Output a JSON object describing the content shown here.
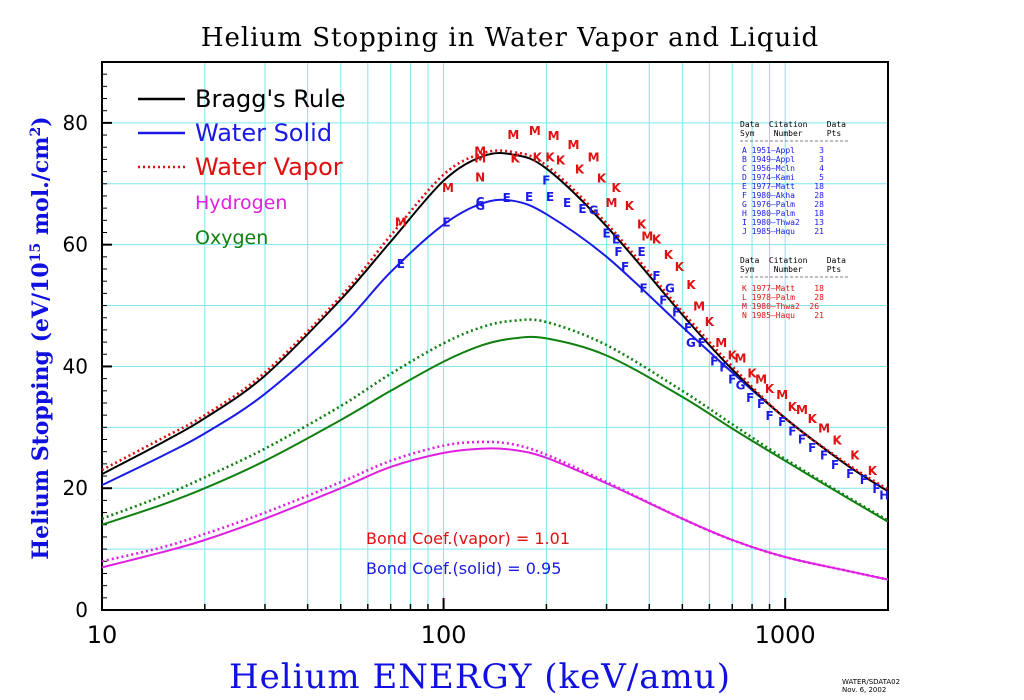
{
  "chart_data": {
    "type": "line",
    "title": "Helium Stopping in Water Vapor and Liquid",
    "xlabel": "Helium ENERGY (keV/amu)",
    "ylabel": "Helium Stopping (eV/10",
    "ylabel_sup": "15",
    "ylabel_mid": " mol./cm",
    "ylabel_sup2": "2",
    "ylabel_end": ")",
    "x_scale": "log",
    "xlim": [
      10,
      2000
    ],
    "ylim": [
      0,
      90
    ],
    "grid": true,
    "x_ticks": [
      10,
      100,
      1000
    ],
    "x_tick_labels": [
      "10",
      "100",
      "1000"
    ],
    "y_ticks": [
      0,
      20,
      40,
      60,
      80
    ],
    "y_tick_labels": [
      "0",
      "20",
      "40",
      "60",
      "80"
    ],
    "legend_position": "top-left",
    "legend": [
      {
        "label": "Bragg's Rule",
        "color": "#000000",
        "style": "solid"
      },
      {
        "label": "Water Solid",
        "color": "#1a1ae6",
        "style": "solid"
      },
      {
        "label": "Water Vapor",
        "color": "#e01010",
        "style": "dotted"
      },
      {
        "label": "Hydrogen",
        "color": "#e020e0",
        "style": "none"
      },
      {
        "label": "Oxygen",
        "color": "#108010",
        "style": "none"
      }
    ],
    "series": [
      {
        "name": "Bragg's Rule",
        "color": "#000000",
        "dash": "solid",
        "x": [
          10,
          15,
          20,
          30,
          50,
          70,
          100,
          130,
          160,
          200,
          300,
          500,
          700,
          1000,
          1500,
          2000
        ],
        "y": [
          22.3,
          27.5,
          31.5,
          38.5,
          51,
          60.5,
          70.5,
          74.5,
          74.8,
          72.5,
          63,
          48.5,
          39.5,
          31.5,
          24,
          19.5
        ]
      },
      {
        "name": "Water Solid",
        "color": "#1a1ae6",
        "dash": "solid",
        "x": [
          10,
          15,
          20,
          30,
          50,
          70,
          100,
          130,
          160,
          200,
          300,
          500,
          700,
          1000,
          1500,
          2000
        ],
        "y": [
          20.5,
          25.3,
          29,
          35.5,
          46.5,
          55.5,
          63.3,
          66.8,
          67.2,
          65,
          58,
          46.5,
          39,
          31.5,
          24,
          19.5
        ]
      },
      {
        "name": "Water Vapor",
        "color": "#e01010",
        "dash": "dotted",
        "x": [
          10,
          15,
          20,
          30,
          50,
          70,
          100,
          130,
          160,
          200,
          300,
          500,
          700,
          1000,
          1500,
          2000
        ],
        "y": [
          23,
          28.2,
          32,
          39,
          51.5,
          61.5,
          71.5,
          75,
          75.2,
          73,
          63.5,
          49,
          40,
          31.5,
          24.2,
          19.8
        ]
      },
      {
        "name": "Oxygen (vapor)",
        "color": "#108010",
        "dash": "dotted",
        "x": [
          10,
          15,
          20,
          30,
          50,
          70,
          100,
          130,
          160,
          200,
          300,
          500,
          700,
          1000,
          1500,
          2000
        ],
        "y": [
          15,
          18.7,
          21.8,
          26.5,
          33.5,
          38.8,
          43.8,
          46.5,
          47.5,
          47.3,
          43.5,
          36,
          30.5,
          24.8,
          18.8,
          14.7
        ]
      },
      {
        "name": "Oxygen (solid)",
        "color": "#108010",
        "dash": "solid",
        "x": [
          10,
          15,
          20,
          30,
          50,
          70,
          100,
          130,
          160,
          200,
          300,
          500,
          700,
          1000,
          1500,
          2000
        ],
        "y": [
          14,
          17.3,
          20,
          24.5,
          31.2,
          36,
          40.8,
          43.5,
          44.6,
          44.6,
          41.8,
          35,
          29.8,
          24.5,
          18.6,
          14.5
        ]
      },
      {
        "name": "Hydrogen (vapor)",
        "color": "#e020e0",
        "dash": "dotted",
        "x": [
          10,
          15,
          20,
          30,
          50,
          70,
          100,
          130,
          160,
          200,
          300,
          500,
          700,
          1000,
          1500,
          2000
        ],
        "y": [
          8,
          10.3,
          12.5,
          16,
          21,
          24.5,
          27,
          27.6,
          27.2,
          25.5,
          21,
          15,
          11.5,
          8.7,
          6.5,
          5
        ]
      },
      {
        "name": "Hydrogen (solid)",
        "color": "#e020e0",
        "dash": "solid",
        "x": [
          10,
          15,
          20,
          30,
          50,
          70,
          100,
          130,
          160,
          200,
          300,
          500,
          700,
          1000,
          1500,
          2000
        ],
        "y": [
          7,
          9.5,
          11.5,
          15,
          20,
          23.5,
          25.8,
          26.5,
          26.3,
          25,
          20.8,
          15,
          11.5,
          8.7,
          6.5,
          5
        ]
      }
    ],
    "points": [
      {
        "s": "E",
        "x": 75,
        "y": 57,
        "c": "#1a1ae6"
      },
      {
        "s": "E",
        "x": 102,
        "y": 63.8,
        "c": "#1a1ae6"
      },
      {
        "s": "G",
        "x": 128,
        "y": 66.5,
        "c": "#1a1ae6"
      },
      {
        "s": "C",
        "x": 128,
        "y": 67.2,
        "c": "#1a1ae6"
      },
      {
        "s": "E",
        "x": 153,
        "y": 67.8,
        "c": "#1a1ae6"
      },
      {
        "s": "E",
        "x": 178,
        "y": 68,
        "c": "#1a1ae6"
      },
      {
        "s": "F",
        "x": 200,
        "y": 70.7,
        "c": "#1a1ae6"
      },
      {
        "s": "E",
        "x": 205,
        "y": 68,
        "c": "#1a1ae6"
      },
      {
        "s": "E",
        "x": 230,
        "y": 67,
        "c": "#1a1ae6"
      },
      {
        "s": "E",
        "x": 255,
        "y": 66,
        "c": "#1a1ae6"
      },
      {
        "s": "G",
        "x": 275,
        "y": 65.8,
        "c": "#1a1ae6"
      },
      {
        "s": "E",
        "x": 300,
        "y": 62,
        "c": "#1a1ae6"
      },
      {
        "s": "E",
        "x": 320,
        "y": 61,
        "c": "#1a1ae6"
      },
      {
        "s": "F",
        "x": 325,
        "y": 59,
        "c": "#1a1ae6"
      },
      {
        "s": "F",
        "x": 340,
        "y": 56.5,
        "c": "#1a1ae6"
      },
      {
        "s": "E",
        "x": 380,
        "y": 59,
        "c": "#1a1ae6"
      },
      {
        "s": "F",
        "x": 385,
        "y": 53,
        "c": "#1a1ae6"
      },
      {
        "s": "F",
        "x": 420,
        "y": 55,
        "c": "#1a1ae6"
      },
      {
        "s": "F",
        "x": 440,
        "y": 51,
        "c": "#1a1ae6"
      },
      {
        "s": "G",
        "x": 460,
        "y": 53,
        "c": "#1a1ae6"
      },
      {
        "s": "F",
        "x": 480,
        "y": 49,
        "c": "#1a1ae6"
      },
      {
        "s": "F",
        "x": 520,
        "y": 46.5,
        "c": "#1a1ae6"
      },
      {
        "s": "G",
        "x": 530,
        "y": 44,
        "c": "#1a1ae6"
      },
      {
        "s": "F",
        "x": 570,
        "y": 44,
        "c": "#1a1ae6"
      },
      {
        "s": "F",
        "x": 620,
        "y": 41,
        "c": "#1a1ae6"
      },
      {
        "s": "F",
        "x": 660,
        "y": 40,
        "c": "#1a1ae6"
      },
      {
        "s": "F",
        "x": 700,
        "y": 38,
        "c": "#1a1ae6"
      },
      {
        "s": "G",
        "x": 740,
        "y": 37,
        "c": "#1a1ae6"
      },
      {
        "s": "F",
        "x": 790,
        "y": 35,
        "c": "#1a1ae6"
      },
      {
        "s": "F",
        "x": 850,
        "y": 34,
        "c": "#1a1ae6"
      },
      {
        "s": "F",
        "x": 900,
        "y": 32,
        "c": "#1a1ae6"
      },
      {
        "s": "F",
        "x": 980,
        "y": 31,
        "c": "#1a1ae6"
      },
      {
        "s": "F",
        "x": 1050,
        "y": 29.5,
        "c": "#1a1ae6"
      },
      {
        "s": "F",
        "x": 1120,
        "y": 28.2,
        "c": "#1a1ae6"
      },
      {
        "s": "F",
        "x": 1200,
        "y": 26.8,
        "c": "#1a1ae6"
      },
      {
        "s": "F",
        "x": 1300,
        "y": 25.5,
        "c": "#1a1ae6"
      },
      {
        "s": "F",
        "x": 1400,
        "y": 24,
        "c": "#1a1ae6"
      },
      {
        "s": "F",
        "x": 1550,
        "y": 22.5,
        "c": "#1a1ae6"
      },
      {
        "s": "F",
        "x": 1700,
        "y": 21.5,
        "c": "#1a1ae6"
      },
      {
        "s": "F",
        "x": 1850,
        "y": 20,
        "c": "#1a1ae6"
      },
      {
        "s": "H",
        "x": 1950,
        "y": 19,
        "c": "#1a1ae6"
      },
      {
        "s": "M",
        "x": 75,
        "y": 63.8,
        "c": "#e01010"
      },
      {
        "s": "M",
        "x": 103,
        "y": 69.5,
        "c": "#e01010"
      },
      {
        "s": "N",
        "x": 128,
        "y": 71.2,
        "c": "#e01010"
      },
      {
        "s": "M",
        "x": 128,
        "y": 74.3,
        "c": "#e01010"
      },
      {
        "s": "M",
        "x": 128,
        "y": 75.5,
        "c": "#e01010"
      },
      {
        "s": "M",
        "x": 160,
        "y": 78.2,
        "c": "#e01010"
      },
      {
        "s": "K",
        "x": 162,
        "y": 74.3,
        "c": "#e01010"
      },
      {
        "s": "M",
        "x": 185,
        "y": 78.8,
        "c": "#e01010"
      },
      {
        "s": "K",
        "x": 188,
        "y": 74.5,
        "c": "#e01010"
      },
      {
        "s": "K",
        "x": 205,
        "y": 74.5,
        "c": "#e01010"
      },
      {
        "s": "M",
        "x": 210,
        "y": 78,
        "c": "#e01010"
      },
      {
        "s": "K",
        "x": 220,
        "y": 74,
        "c": "#e01010"
      },
      {
        "s": "M",
        "x": 240,
        "y": 76.5,
        "c": "#e01010"
      },
      {
        "s": "K",
        "x": 250,
        "y": 72.5,
        "c": "#e01010"
      },
      {
        "s": "M",
        "x": 275,
        "y": 74.5,
        "c": "#e01010"
      },
      {
        "s": "K",
        "x": 290,
        "y": 71,
        "c": "#e01010"
      },
      {
        "s": "K",
        "x": 320,
        "y": 69.5,
        "c": "#e01010"
      },
      {
        "s": "M",
        "x": 310,
        "y": 67,
        "c": "#e01010"
      },
      {
        "s": "K",
        "x": 350,
        "y": 66.5,
        "c": "#e01010"
      },
      {
        "s": "K",
        "x": 380,
        "y": 63.5,
        "c": "#e01010"
      },
      {
        "s": "M",
        "x": 395,
        "y": 61.5,
        "c": "#e01010"
      },
      {
        "s": "K",
        "x": 420,
        "y": 61,
        "c": "#e01010"
      },
      {
        "s": "K",
        "x": 455,
        "y": 58.5,
        "c": "#e01010"
      },
      {
        "s": "K",
        "x": 490,
        "y": 56.5,
        "c": "#e01010"
      },
      {
        "s": "K",
        "x": 530,
        "y": 53.5,
        "c": "#e01010"
      },
      {
        "s": "M",
        "x": 560,
        "y": 50,
        "c": "#e01010"
      },
      {
        "s": "K",
        "x": 600,
        "y": 47.5,
        "c": "#e01010"
      },
      {
        "s": "M",
        "x": 650,
        "y": 44,
        "c": "#e01010"
      },
      {
        "s": "K",
        "x": 700,
        "y": 42,
        "c": "#e01010"
      },
      {
        "s": "M",
        "x": 740,
        "y": 41.5,
        "c": "#e01010"
      },
      {
        "s": "K",
        "x": 800,
        "y": 39,
        "c": "#e01010"
      },
      {
        "s": "M",
        "x": 850,
        "y": 38,
        "c": "#e01010"
      },
      {
        "s": "K",
        "x": 900,
        "y": 36.5,
        "c": "#e01010"
      },
      {
        "s": "M",
        "x": 980,
        "y": 35.5,
        "c": "#e01010"
      },
      {
        "s": "K",
        "x": 1050,
        "y": 33.5,
        "c": "#e01010"
      },
      {
        "s": "M",
        "x": 1120,
        "y": 33,
        "c": "#e01010"
      },
      {
        "s": "K",
        "x": 1200,
        "y": 31.5,
        "c": "#e01010"
      },
      {
        "s": "M",
        "x": 1300,
        "y": 30,
        "c": "#e01010"
      },
      {
        "s": "K",
        "x": 1420,
        "y": 28,
        "c": "#e01010"
      },
      {
        "s": "K",
        "x": 1600,
        "y": 25.5,
        "c": "#e01010"
      },
      {
        "s": "K",
        "x": 1800,
        "y": 23,
        "c": "#e01010"
      }
    ]
  },
  "bond": {
    "vapor": "Bond Coef.(vapor) = 1.01",
    "solid": "Bond Coef.(solid) = 0.95"
  },
  "tables": {
    "solid": {
      "header1": "Data  Citation    Data",
      "header2": "Sym    Number     Pts",
      "rows": [
        "A 1951—Appl     3",
        "B 1949—Appl     3",
        "C 1956—Mcln     4",
        "D 1974—Kami     5",
        "E 1977—Matt    18",
        "F 1980—Akha    28",
        "G 1976—Palm    28",
        "H 1980—Palm    18",
        "I 1980—Thwa2   13",
        "J 1985—Haqu    21"
      ]
    },
    "vapor": {
      "header1": "Data  Citation    Data",
      "header2": "Sym    Number     Pts",
      "rows": [
        "K 1977—Matt    18",
        "L 1978—Palm    28",
        "M 1980—Thwa2  26",
        "N 1985—Haqu    21"
      ]
    }
  },
  "footer": {
    "line1": "WATER/SDATA02",
    "line2": "Nov. 6, 2002"
  },
  "colors": {
    "grid": "#7fe6ee",
    "blue": "#1a1ae6",
    "red": "#e01010",
    "green": "#108010",
    "magenta": "#e020e0"
  }
}
